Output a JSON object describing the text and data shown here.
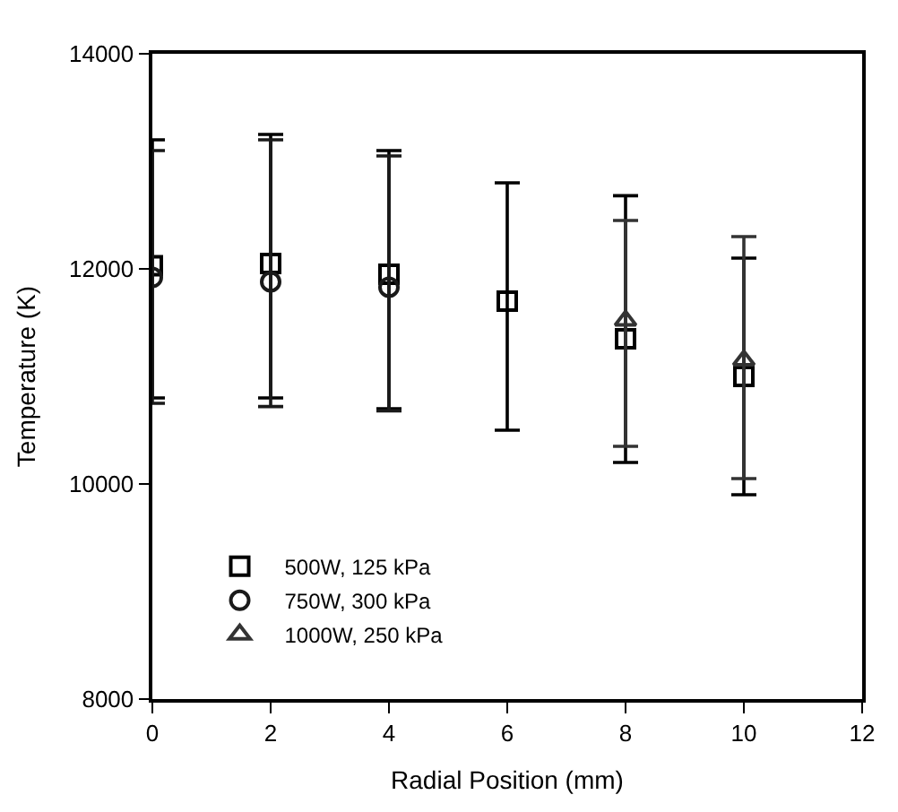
{
  "chart_data": {
    "type": "scatter",
    "xlabel": "Radial Position (mm)",
    "ylabel": "Temperature (K)",
    "xlim": [
      0,
      12
    ],
    "xticks": [
      0,
      2,
      4,
      6,
      8,
      10,
      12
    ],
    "ylim": [
      8000,
      14000
    ],
    "yticks": [
      8000,
      10000,
      12000,
      14000
    ],
    "legend": "bottom left",
    "series": [
      {
        "name": "500W, 125 kPa",
        "color": "#000000",
        "marker": "square",
        "x": [
          0,
          2,
          4,
          6,
          8,
          10
        ],
        "values": [
          12030,
          12050,
          11950,
          11700,
          11350,
          11000
        ],
        "errors": [
          [
            10800,
            13200
          ],
          [
            10800,
            13250
          ],
          [
            10700,
            13100
          ],
          [
            10500,
            12800
          ],
          [
            10200,
            12680
          ],
          [
            9900,
            12100
          ]
        ]
      },
      {
        "name": "750W, 300 kPa",
        "color": "#1a1a1a",
        "marker": "circle",
        "x": [
          0,
          2,
          4
        ],
        "values": [
          11920,
          11880,
          11830
        ],
        "errors": [
          [
            10750,
            13100
          ],
          [
            10720,
            13200
          ],
          [
            10680,
            13050
          ]
        ]
      },
      {
        "name": "1000W, 250 kPa",
        "color": "#333333",
        "marker": "triangle",
        "x": [
          8,
          10
        ],
        "values": [
          11520,
          11150
        ],
        "errors": [
          [
            10350,
            12450
          ],
          [
            10050,
            12300
          ]
        ]
      }
    ]
  }
}
